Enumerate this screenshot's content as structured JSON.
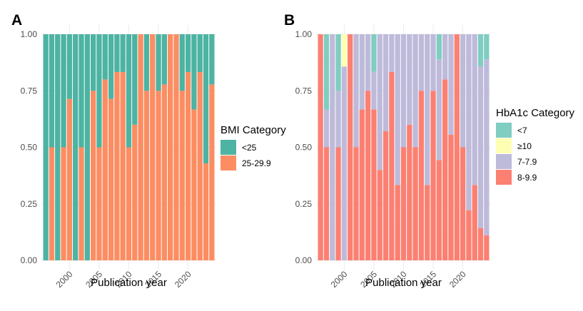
{
  "chart_data": [
    {
      "panel": "A",
      "type": "bar",
      "stacked": "proportional",
      "xlabel": "Publication year",
      "ylabel": "",
      "ylim": [
        0,
        1
      ],
      "y_ticks": [
        "0.00",
        "0.25",
        "0.50",
        "0.75",
        "1.00"
      ],
      "x_ticks": [
        "2000",
        "2005",
        "2010",
        "2015",
        "2020"
      ],
      "legend_title": "BMI Category",
      "legend_position": "right",
      "x": [
        1996,
        1997,
        1998,
        1999,
        2000,
        2001,
        2002,
        2003,
        2004,
        2005,
        2006,
        2007,
        2008,
        2009,
        2010,
        2011,
        2012,
        2013,
        2014,
        2015,
        2016,
        2017,
        2018,
        2019,
        2020,
        2021,
        2022,
        2023,
        2024
      ],
      "series": [
        {
          "name": "25-29.9",
          "color": "#FC8D62",
          "values": [
            0,
            0.5,
            0,
            0.5,
            0.714,
            0,
            0.5,
            0,
            0.75,
            0.5,
            0.8,
            0.714,
            0.833,
            0.833,
            0.5,
            0.6,
            1,
            0.75,
            1,
            0.75,
            0.778,
            1,
            1,
            0.75,
            0.833,
            0.667,
            0.833,
            0.429,
            0.778
          ]
        },
        {
          "name": "<25",
          "color": "#4DB3A2",
          "values": [
            1,
            0.5,
            1,
            0.5,
            0.286,
            1,
            0.5,
            1,
            0.25,
            0.5,
            0.2,
            0.286,
            0.167,
            0.167,
            0.5,
            0.4,
            0,
            0.25,
            0,
            0.25,
            0.222,
            0,
            0,
            0.25,
            0.167,
            0.333,
            0.167,
            0.571,
            0.222
          ]
        }
      ],
      "legend_order": [
        "<25",
        "25-29.9"
      ]
    },
    {
      "panel": "B",
      "type": "bar",
      "stacked": "proportional",
      "xlabel": "Publication year",
      "ylabel": "",
      "ylim": [
        0,
        1
      ],
      "y_ticks": [
        "0.00",
        "0.25",
        "0.50",
        "0.75",
        "1.00"
      ],
      "x_ticks": [
        "2000",
        "2005",
        "2010",
        "2015",
        "2020"
      ],
      "legend_title": "HbA1c Category",
      "legend_position": "right",
      "x": [
        1996,
        1997,
        1998,
        1999,
        2000,
        2001,
        2002,
        2003,
        2004,
        2005,
        2006,
        2007,
        2008,
        2009,
        2010,
        2011,
        2012,
        2013,
        2014,
        2015,
        2016,
        2017,
        2018,
        2019,
        2020,
        2021,
        2022,
        2023,
        2024
      ],
      "series": [
        {
          "name": "8-9.9",
          "color": "#FB8072",
          "values": [
            1,
            0.5,
            0,
            0.5,
            0,
            1,
            0.5,
            0.667,
            0.75,
            0.667,
            0.4,
            0.571,
            0.833,
            0.333,
            0.5,
            0.6,
            0.5,
            0.75,
            0.333,
            0.75,
            0.444,
            0.8,
            0.556,
            1,
            0.5,
            0.222,
            0.333,
            0.143,
            0.111
          ]
        },
        {
          "name": "7-7.9",
          "color": "#BEBADA",
          "values": [
            0,
            0.167,
            1,
            0.25,
            0.857,
            0,
            0.5,
            0.333,
            0.25,
            0.167,
            0.6,
            0.429,
            0.167,
            0.667,
            0.5,
            0.4,
            0.5,
            0.25,
            0.667,
            0.25,
            0.445,
            0.2,
            0.444,
            0,
            0.5,
            0.778,
            0.667,
            0.714,
            0.778
          ]
        },
        {
          "name": "≥10",
          "color": "#FFFFB3",
          "values": [
            0,
            0,
            0,
            0,
            0.143,
            0,
            0,
            0,
            0,
            0,
            0,
            0,
            0,
            0,
            0,
            0,
            0,
            0,
            0,
            0,
            0,
            0,
            0,
            0,
            0,
            0,
            0,
            0,
            0
          ]
        },
        {
          "name": "<7",
          "color": "#80CDC1",
          "values": [
            0,
            0.333,
            0,
            0.25,
            0,
            0,
            0,
            0,
            0,
            0.166,
            0,
            0,
            0,
            0,
            0,
            0,
            0,
            0,
            0,
            0,
            0.111,
            0,
            0,
            0,
            0,
            0,
            0,
            0.143,
            0.111
          ]
        }
      ],
      "legend_order": [
        "<7",
        "≥10",
        "7-7.9",
        "8-9.9"
      ]
    }
  ]
}
